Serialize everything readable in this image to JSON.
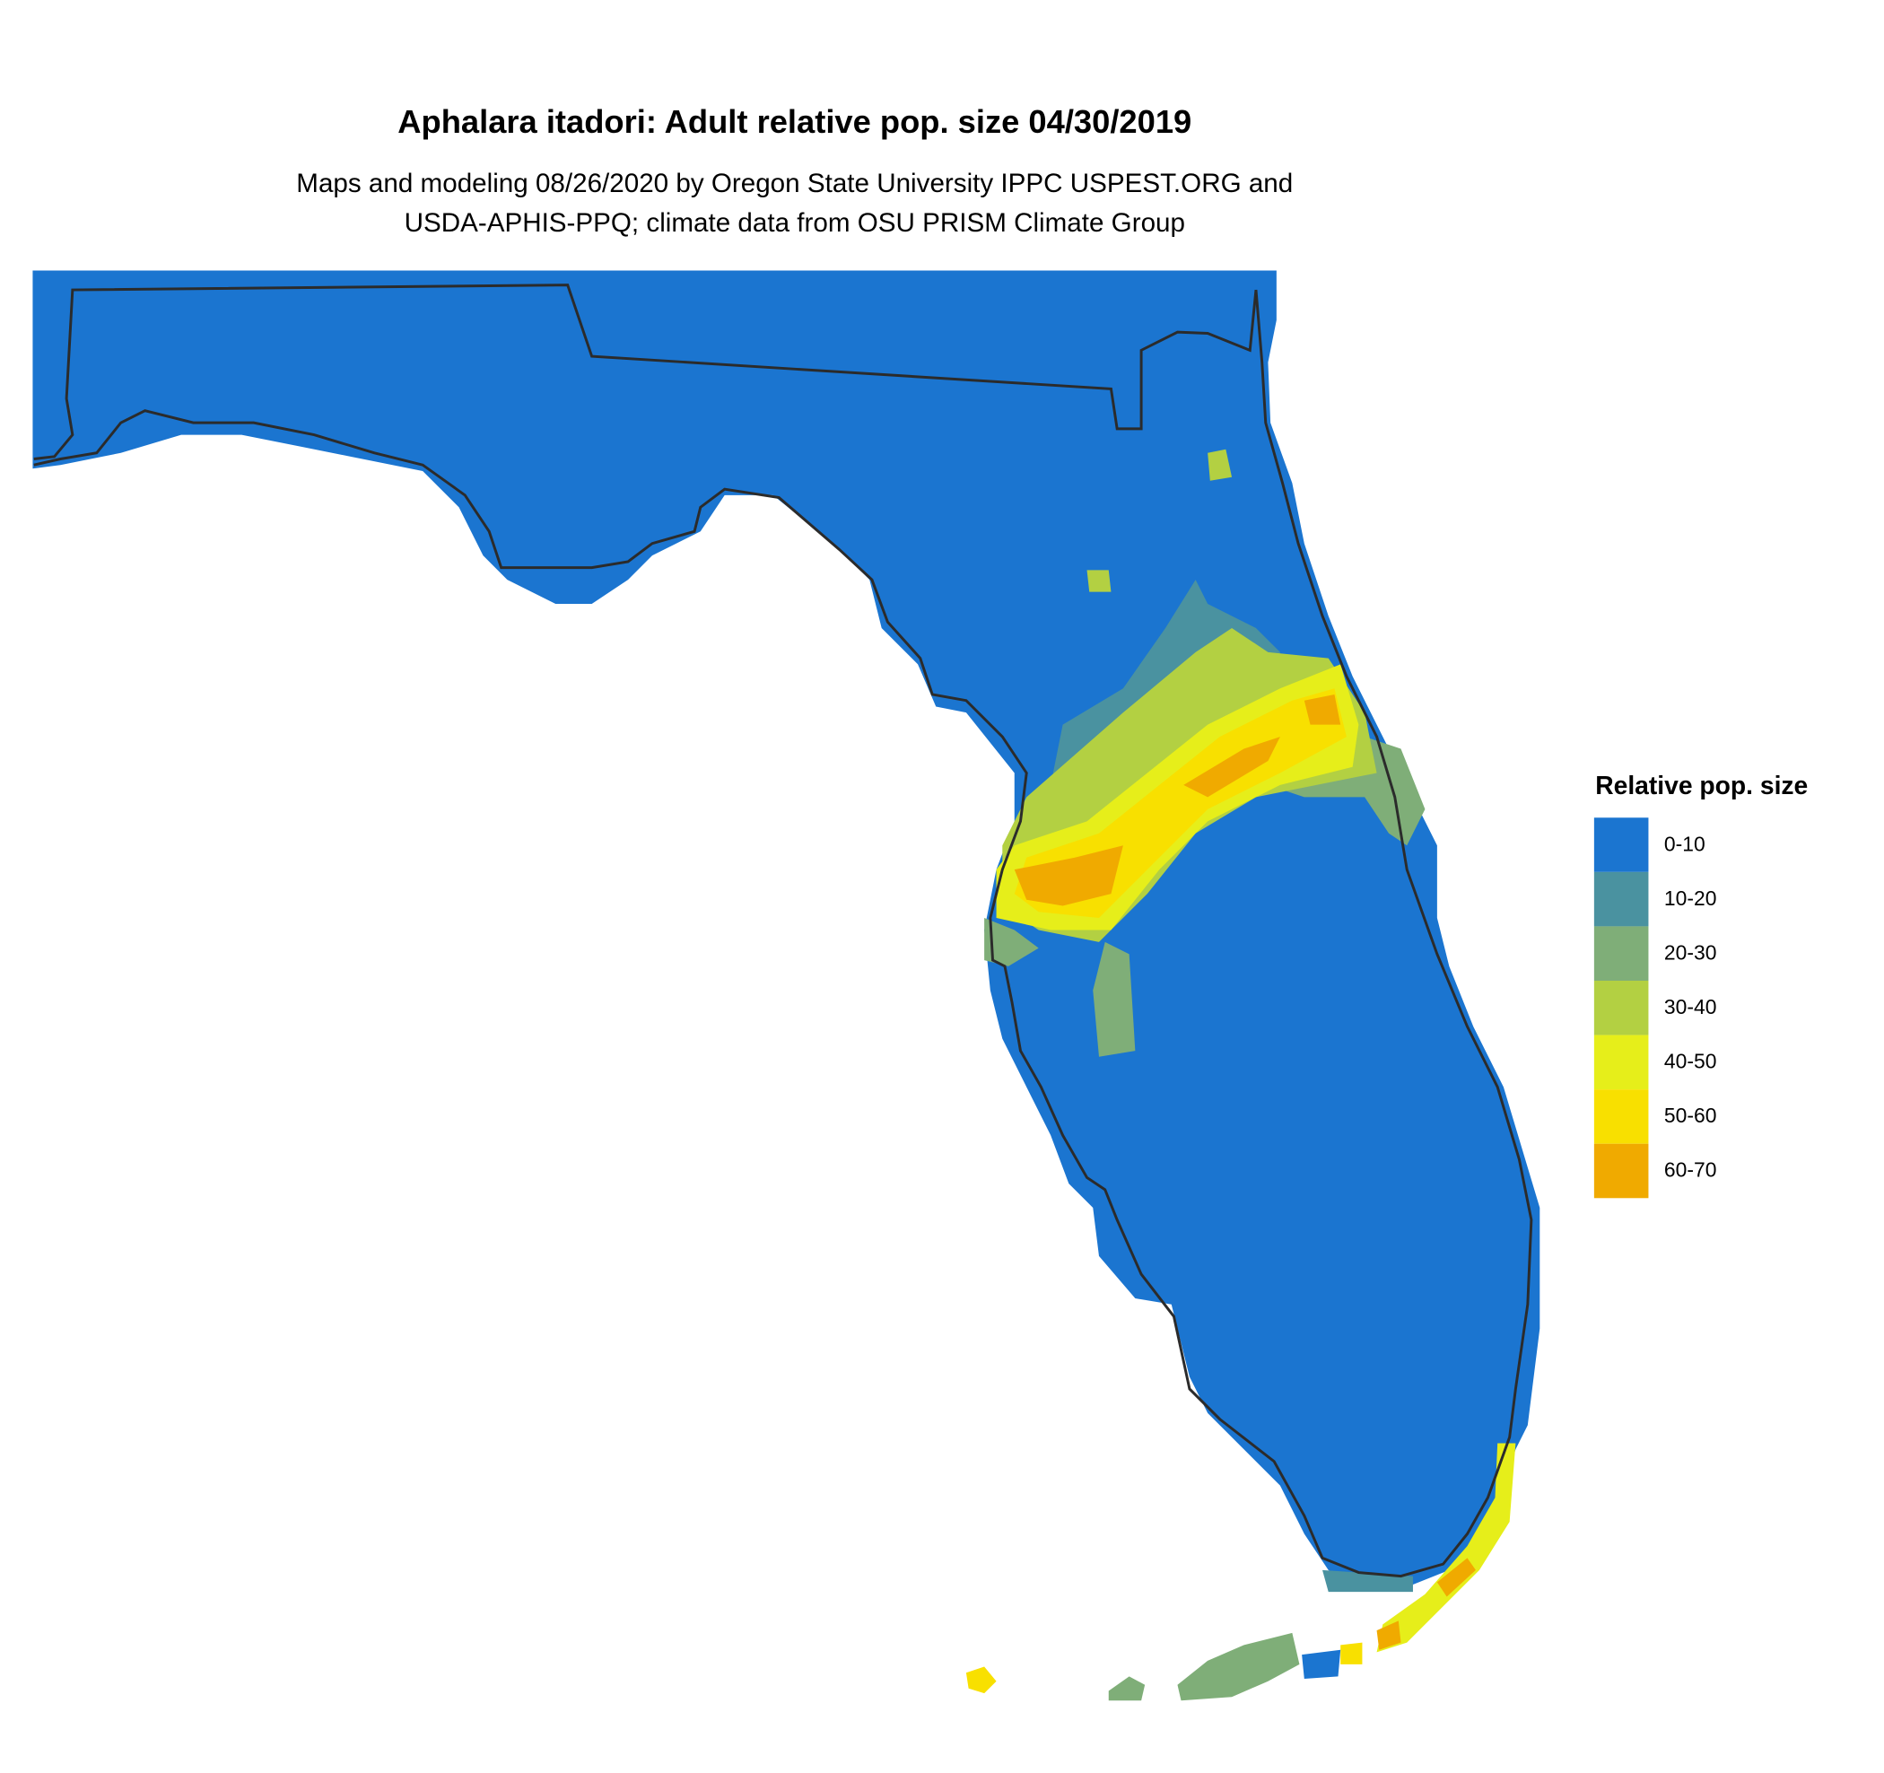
{
  "title": "Aphalara itadori: Adult relative pop. size 04/30/2019",
  "subtitle": [
    "Maps and modeling 08/26/2020 by Oregon State University IPPC USPEST.ORG and",
    "USDA-APHIS-PPQ; climate data from OSU PRISM Climate Group"
  ],
  "legend": {
    "title": "Relative pop. size",
    "items": [
      {
        "label": "0-10",
        "color": "#1b75d0"
      },
      {
        "label": "10-20",
        "color": "#4a92a0"
      },
      {
        "label": "20-30",
        "color": "#7fae78"
      },
      {
        "label": "30-40",
        "color": "#b3d042"
      },
      {
        "label": "40-50",
        "color": "#e6ee1a"
      },
      {
        "label": "50-60",
        "color": "#f8e000"
      },
      {
        "label": "60-70",
        "color": "#f0aa00"
      }
    ]
  }
}
